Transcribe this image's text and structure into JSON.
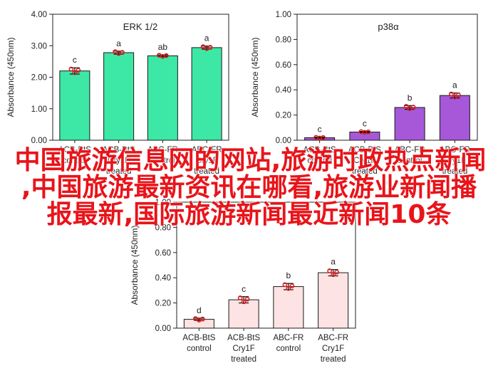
{
  "overlay": {
    "line1": "中国旅游信息网的网站,旅游时政热点新闻",
    "line2": ",中国旅游最新资讯在哪看,旅游业新闻播",
    "line3": "报最新,国际旅游新闻最近新闻10条"
  },
  "colors": {
    "erk": "#3de8a6",
    "p38": "#a658d8",
    "third": "#fde3e3",
    "dot": "#e01818",
    "edge": "#1a1a1a"
  },
  "chart_data": [
    {
      "type": "bar",
      "title": "ERK 1/2",
      "ylabel": "Absorbance (450nm)",
      "ylim": [
        0,
        4.0
      ],
      "yticks": [
        "0.00",
        "1.00",
        "2.00",
        "3.00",
        "4.00"
      ],
      "categories": [
        [
          "ACB-BtS",
          "control"
        ],
        [
          "ACB-BtS",
          "Cry1F",
          "treated"
        ],
        [
          "ABC-FR",
          "control"
        ],
        [
          "ABC-FR",
          "Cry1F",
          "treated"
        ]
      ],
      "values": [
        2.2,
        2.78,
        2.68,
        2.94
      ],
      "errors": [
        0.1,
        0.05,
        0.03,
        0.05
      ],
      "letters": [
        "c",
        "a",
        "ab",
        "a"
      ]
    },
    {
      "type": "bar",
      "title": "p38α",
      "ylabel": "Absorbance (450nm)",
      "ylim": [
        0,
        1.0
      ],
      "yticks": [
        "0.00",
        "0.20",
        "0.40",
        "0.60",
        "0.80",
        "1.00"
      ],
      "categories": [
        [
          "ACB-BtS",
          "control"
        ],
        [
          "ACB-BtS",
          "Cry1F",
          "treated"
        ],
        [
          "ABC-FR",
          "control"
        ],
        [
          "ABC-FR",
          "Cry1F",
          "treated"
        ]
      ],
      "values": [
        0.02,
        0.065,
        0.26,
        0.355
      ],
      "errors": [
        0.005,
        0.005,
        0.015,
        0.02
      ],
      "letters": [
        "c",
        "c",
        "b",
        "a"
      ]
    },
    {
      "type": "bar",
      "title": "",
      "ylabel": "Absorbance (450nm)",
      "ylim": [
        0,
        1.0
      ],
      "yticks": [
        "0.00",
        "0.20",
        "0.40",
        "0.60",
        "0.80",
        "1.00"
      ],
      "categories": [
        [
          "ACB-BtS",
          "control"
        ],
        [
          "ACB-BtS",
          "Cry1F",
          "treated"
        ],
        [
          "ABC-FR",
          "control"
        ],
        [
          "ABC-FR",
          "Cry1F",
          "treated"
        ]
      ],
      "values": [
        0.07,
        0.225,
        0.33,
        0.44
      ],
      "errors": [
        0.01,
        0.025,
        0.025,
        0.025
      ],
      "letters": [
        "d",
        "c",
        "b",
        "a"
      ]
    }
  ]
}
